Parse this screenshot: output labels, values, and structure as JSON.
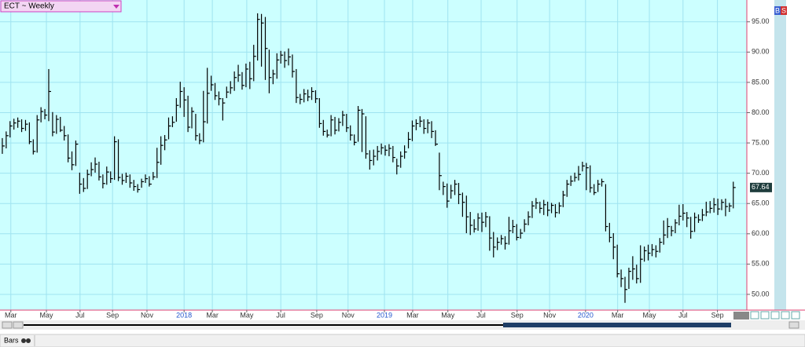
{
  "chart_data": {
    "type": "ohlc",
    "ylim": [
      47.4,
      98.6
    ],
    "yticks": [
      {
        "value": 50,
        "label": "50.00"
      },
      {
        "value": 55,
        "label": "55.00"
      },
      {
        "value": 60,
        "label": "60.00"
      },
      {
        "value": 65,
        "label": "65.00"
      },
      {
        "value": 70,
        "label": "70.00"
      },
      {
        "value": 75,
        "label": "75.00"
      },
      {
        "value": 80,
        "label": "80.00"
      },
      {
        "value": 85,
        "label": "85.00"
      },
      {
        "value": 90,
        "label": "90.00"
      },
      {
        "value": 95,
        "label": "95.00"
      }
    ],
    "xlim": [
      -0.6,
      192.5
    ],
    "xticks": [
      {
        "value": 2.2,
        "label": "Mar"
      },
      {
        "value": 11.4,
        "label": "May"
      },
      {
        "value": 20.1,
        "label": "Jul"
      },
      {
        "value": 28.5,
        "label": "Sep"
      },
      {
        "value": 37.4,
        "label": "Nov"
      },
      {
        "value": 47.0,
        "label": "2018"
      },
      {
        "value": 54.3,
        "label": "Mar"
      },
      {
        "value": 63.2,
        "label": "May"
      },
      {
        "value": 72.0,
        "label": "Jul"
      },
      {
        "value": 81.3,
        "label": "Sep"
      },
      {
        "value": 89.4,
        "label": "Nov"
      },
      {
        "value": 98.8,
        "label": "2019"
      },
      {
        "value": 106.1,
        "label": "Mar"
      },
      {
        "value": 115.2,
        "label": "May"
      },
      {
        "value": 123.8,
        "label": "Jul"
      },
      {
        "value": 133.1,
        "label": "Sep"
      },
      {
        "value": 141.5,
        "label": "Nov"
      },
      {
        "value": 150.8,
        "label": "2020"
      },
      {
        "value": 159.1,
        "label": "Mar"
      },
      {
        "value": 167.3,
        "label": "May"
      },
      {
        "value": 176.0,
        "label": "Jul"
      },
      {
        "value": 184.9,
        "label": "Sep"
      }
    ],
    "grid": true,
    "color": "#000000",
    "background": "#ccffff",
    "grid_color": "#9fe3f0",
    "year_color": "#2255cc",
    "series": [
      {
        "name": "ECT ~ Weekly",
        "high": [
          75.8,
          76.9,
          78.6,
          79.0,
          79.2,
          78.9,
          78.8,
          78.4,
          75.6,
          79.6,
          80.9,
          80.6,
          87.2,
          80.1,
          79.6,
          79.3,
          77.8,
          76.4,
          73.6,
          75.4,
          70.1,
          69.2,
          70.6,
          71.8,
          72.6,
          71.9,
          69.8,
          71.1,
          70.3,
          76.1,
          75.6,
          69.9,
          70.1,
          69.8,
          68.9,
          68.2,
          69.1,
          69.8,
          69.5,
          70.2,
          74.2,
          76.1,
          76.3,
          79.2,
          79.4,
          82.4,
          85.1,
          84.2,
          82.8,
          80.9,
          79.8,
          76.6,
          83.6,
          87.4,
          86.1,
          84.9,
          83.5,
          82.4,
          84.3,
          85.2,
          86.8,
          87.9,
          86.7,
          88.1,
          88.4,
          91.2,
          96.4,
          96.3,
          95.8,
          90.4,
          87.1,
          89.8,
          90.2,
          90.1,
          90.6,
          89.6,
          87.2,
          83.1,
          83.9,
          83.8,
          84.2,
          83.7,
          82.4,
          78.8,
          77.2,
          79.6,
          79.3,
          79.1,
          80.3,
          79.8,
          77.9,
          76.4,
          81.1,
          80.6,
          79.4,
          73.8,
          73.9,
          74.5,
          74.9,
          74.6,
          74.8,
          74.5,
          72.4,
          73.6,
          74.6,
          76.8,
          78.7,
          78.9,
          79.4,
          78.9,
          78.9,
          78.6,
          77.1,
          73.4,
          68.6,
          68.3,
          68.1,
          68.9,
          68.4,
          66.8,
          66.3,
          63.6,
          62.4,
          63.4,
          63.5,
          63.6,
          62.9,
          60.3,
          59.4,
          59.8,
          59.6,
          62.8,
          62.3,
          61.6,
          60.8,
          62.4,
          63.7,
          65.4,
          65.9,
          65.3,
          65.6,
          65.3,
          65.1,
          64.9,
          65.2,
          67.1,
          68.9,
          69.6,
          70.1,
          71.2,
          71.9,
          71.7,
          71.3,
          68.2,
          68.9,
          69.1,
          68.2,
          61.8,
          60.1,
          58.2,
          54.1,
          52.9,
          54.4,
          56.3,
          54.9,
          58.1,
          57.9,
          58.2,
          58.3,
          58.1,
          59.3,
          62.2,
          62.6,
          61.3,
          62.4,
          64.8,
          64.9,
          63.6,
          62.8,
          63.5,
          63.2,
          64.1,
          65.3,
          65.4,
          65.9,
          65.8,
          65.7,
          65.8,
          65.1,
          68.6
        ],
        "low": [
          73.2,
          74.1,
          75.9,
          77.2,
          77.5,
          76.8,
          77.0,
          74.8,
          73.1,
          73.4,
          78.4,
          78.9,
          78.6,
          76.1,
          76.5,
          76.8,
          75.4,
          71.8,
          70.5,
          71.2,
          66.6,
          66.9,
          67.4,
          69.5,
          70.1,
          68.8,
          67.5,
          68.1,
          68.4,
          68.9,
          68.7,
          68.1,
          68.4,
          67.6,
          67.1,
          66.8,
          67.6,
          68.4,
          67.8,
          68.9,
          69.2,
          71.4,
          73.8,
          75.6,
          77.6,
          78.5,
          80.8,
          79.3,
          76.8,
          77.4,
          75.4,
          74.8,
          75.1,
          78.2,
          83.6,
          82.1,
          81.2,
          78.7,
          82.4,
          83.1,
          83.6,
          85.1,
          83.8,
          84.2,
          83.9,
          85.2,
          88.6,
          87.6,
          85.4,
          83.2,
          84.7,
          85.6,
          88.1,
          87.4,
          87.8,
          85.8,
          81.6,
          81.4,
          81.7,
          81.9,
          82.1,
          81.6,
          77.5,
          76.2,
          75.9,
          76.1,
          76.4,
          76.9,
          77.8,
          76.8,
          75.4,
          74.6,
          75.2,
          73.5,
          72.4,
          70.6,
          71.3,
          72.1,
          73.1,
          72.9,
          72.8,
          71.8,
          69.8,
          70.9,
          72.4,
          74.1,
          75.3,
          77.1,
          77.6,
          76.5,
          76.6,
          75.8,
          74.5,
          67.2,
          66.4,
          64.3,
          65.8,
          66.4,
          64.9,
          62.8,
          60.1,
          59.8,
          60.2,
          60.5,
          60.3,
          61.1,
          57.2,
          56.1,
          57.3,
          58.2,
          57.4,
          58.2,
          60.1,
          58.9,
          59.2,
          60.3,
          61.4,
          62.6,
          64.1,
          63.4,
          63.1,
          62.9,
          63.4,
          62.7,
          63.3,
          64.4,
          66.1,
          67.9,
          68.6,
          68.8,
          70.3,
          67.2,
          66.8,
          66.4,
          66.9,
          67.8,
          60.4,
          58.6,
          55.8,
          52.8,
          51.2,
          48.6,
          50.9,
          52.4,
          51.8,
          51.9,
          55.4,
          55.6,
          56.3,
          56.1,
          56.9,
          58.2,
          59.3,
          59.6,
          60.1,
          61.4,
          62.2,
          61.1,
          59.2,
          60.3,
          61.8,
          62.1,
          62.9,
          63.4,
          63.5,
          63.1,
          63.9,
          62.9,
          63.6,
          64.2
        ],
        "close": [
          74.5,
          76.2,
          77.8,
          78.3,
          78.6,
          77.4,
          78.1,
          75.2,
          73.6,
          78.8,
          80.2,
          79.6,
          83.5,
          76.8,
          78.9,
          77.1,
          76.2,
          72.5,
          71.4,
          74.8,
          68.2,
          67.5,
          69.8,
          70.6,
          71.5,
          69.4,
          68.3,
          70.2,
          69.1,
          75.2,
          69.3,
          68.8,
          69.5,
          68.4,
          67.8,
          67.3,
          68.6,
          69.1,
          68.2,
          69.4,
          71.8,
          74.6,
          75.5,
          77.8,
          78.4,
          81.2,
          83.5,
          82.1,
          77.6,
          80.2,
          76.2,
          75.4,
          78.5,
          83.2,
          84.6,
          82.8,
          82.3,
          81.6,
          83.4,
          84.1,
          85.8,
          86.2,
          84.5,
          87.2,
          85.6,
          89.3,
          95.4,
          94.8,
          90.6,
          85.8,
          86.4,
          88.7,
          89.5,
          88.6,
          89.2,
          86.8,
          82.5,
          82.2,
          83.1,
          82.6,
          83.5,
          82.3,
          78.2,
          76.9,
          76.3,
          78.8,
          77.1,
          78.4,
          79.6,
          77.5,
          76.3,
          75.1,
          80.4,
          79.8,
          73.2,
          72.1,
          72.8,
          73.6,
          74.2,
          73.8,
          74.1,
          72.6,
          71.2,
          72.8,
          73.5,
          75.6,
          77.8,
          78.2,
          78.6,
          77.4,
          78.3,
          76.9,
          74.8,
          69.6,
          67.8,
          65.4,
          67.1,
          68.2,
          66.5,
          65.2,
          62.8,
          61.4,
          60.8,
          62.6,
          61.9,
          62.8,
          59.3,
          57.8,
          58.6,
          59.2,
          58.4,
          60.5,
          61.2,
          59.4,
          60.1,
          61.6,
          62.8,
          64.6,
          65.1,
          64.2,
          64.8,
          63.9,
          64.7,
          63.5,
          64.6,
          66.4,
          68.2,
          68.7,
          69.3,
          69.8,
          71.2,
          70.9,
          67.6,
          66.8,
          68.2,
          68.6,
          61.2,
          59.4,
          57.8,
          53.4,
          52.6,
          50.8,
          53.8,
          54.2,
          52.6,
          55.8,
          57.2,
          56.8,
          57.4,
          57.1,
          58.6,
          59.8,
          61.2,
          60.5,
          61.8,
          62.9,
          63.4,
          62.6,
          60.4,
          62.7,
          62.3,
          63.1,
          63.6,
          64.2,
          64.8,
          64.1,
          65.2,
          64.5,
          64.6,
          67.64
        ]
      }
    ]
  },
  "ui": {
    "buttons": [
      "B",
      "S"
    ],
    "toolbar": "Bars"
  }
}
